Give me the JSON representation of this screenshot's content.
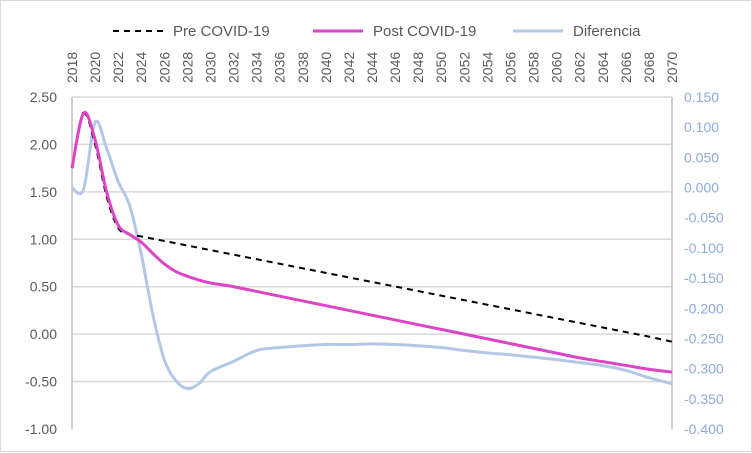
{
  "chart_data": {
    "type": "line",
    "title": "",
    "legend_position": "top",
    "x": [
      2018,
      2019,
      2020,
      2021,
      2022,
      2023,
      2024,
      2025,
      2026,
      2027,
      2028,
      2029,
      2030,
      2032,
      2034,
      2036,
      2038,
      2040,
      2042,
      2044,
      2046,
      2048,
      2050,
      2052,
      2054,
      2056,
      2058,
      2060,
      2062,
      2064,
      2066,
      2068,
      2070
    ],
    "x_tick_labels": [
      "2018",
      "2020",
      "2022",
      "2024",
      "2026",
      "2028",
      "2030",
      "2032",
      "2034",
      "2036",
      "2038",
      "2040",
      "2042",
      "2044",
      "2046",
      "2048",
      "2050",
      "2052",
      "2054",
      "2056",
      "2058",
      "2060",
      "2062",
      "2064",
      "2066",
      "2068",
      "2070"
    ],
    "y_left": {
      "range": [
        -1.0,
        2.5
      ],
      "step": 0.5,
      "tick_labels": [
        "2.50",
        "2.00",
        "1.50",
        "1.00",
        "0.50",
        "0.00",
        "-0.50",
        "-1.00"
      ]
    },
    "y_right": {
      "range": [
        -0.4,
        0.15
      ],
      "step": 0.05,
      "tick_labels": [
        "0.150",
        "0.100",
        "0.050",
        "0.000",
        "-0.050",
        "-0.100",
        "-0.150",
        "-0.200",
        "-0.250",
        "-0.300",
        "-0.350",
        "-0.400"
      ]
    },
    "grid": true,
    "series": [
      {
        "name": "Pre COVID-19",
        "axis": "left",
        "color": "#000000",
        "dash": true,
        "values": [
          1.75,
          2.32,
          2.0,
          1.45,
          1.12,
          1.05,
          1.03,
          1.006,
          0.982,
          0.958,
          0.934,
          0.91,
          0.886,
          0.838,
          0.79,
          0.742,
          0.694,
          0.646,
          0.598,
          0.55,
          0.502,
          0.454,
          0.406,
          0.358,
          0.31,
          0.262,
          0.214,
          0.166,
          0.118,
          0.07,
          0.022,
          -0.026,
          -0.08
        ]
      },
      {
        "name": "Post COVID-19",
        "axis": "left",
        "color": "#db45c6",
        "dash": false,
        "values": [
          1.75,
          2.33,
          2.05,
          1.5,
          1.15,
          1.05,
          0.97,
          0.85,
          0.74,
          0.66,
          0.61,
          0.57,
          0.54,
          0.5,
          0.45,
          0.4,
          0.35,
          0.3,
          0.25,
          0.2,
          0.15,
          0.1,
          0.05,
          0.0,
          -0.05,
          -0.1,
          -0.15,
          -0.2,
          -0.25,
          -0.29,
          -0.33,
          -0.37,
          -0.4
        ]
      },
      {
        "name": "Diferencia",
        "axis": "right",
        "color": "#b4c7e7",
        "dash": false,
        "values": [
          0.0,
          -0.003,
          0.108,
          0.065,
          0.01,
          -0.03,
          -0.11,
          -0.21,
          -0.285,
          -0.32,
          -0.333,
          -0.325,
          -0.305,
          -0.288,
          -0.27,
          -0.265,
          -0.262,
          -0.26,
          -0.26,
          -0.259,
          -0.26,
          -0.262,
          -0.265,
          -0.27,
          -0.274,
          -0.277,
          -0.281,
          -0.285,
          -0.29,
          -0.295,
          -0.303,
          -0.315,
          -0.325
        ]
      }
    ]
  }
}
